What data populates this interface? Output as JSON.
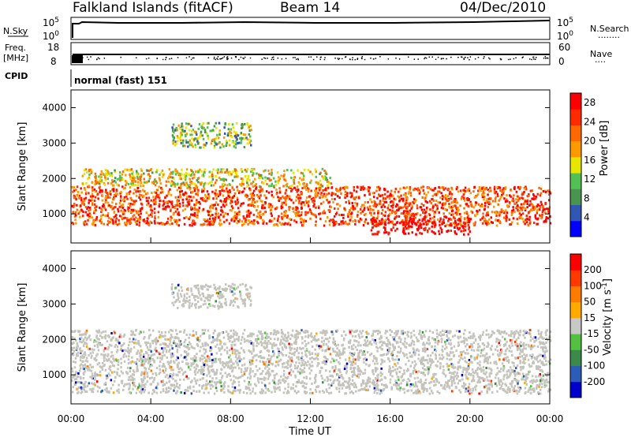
{
  "header": {
    "station": "Falkland Islands (fitACF)",
    "beam": "Beam 14",
    "date": "04/Dec/2010"
  },
  "side_labels": {
    "nsky": "N.Sky",
    "freq": "Freq.",
    "freq_unit": "[MHz]",
    "cpid": "CPID",
    "nsearch": "N.Search",
    "nave": "Nave",
    "nsearch_dots": "········",
    "nave_dots": "····"
  },
  "mini_ticks": {
    "nsky_left": [
      "10^5",
      "10^0"
    ],
    "nsky_right": [
      "10^5",
      "10^0"
    ],
    "freq_left": [
      "18",
      "8"
    ],
    "nave_right": [
      "60",
      "0"
    ]
  },
  "cpid_text": "normal (fast) 151",
  "time_axis": {
    "label": "Time UT",
    "ticks": [
      "00:00",
      "04:00",
      "08:00",
      "12:00",
      "16:00",
      "20:00",
      "00:00"
    ]
  },
  "colors": {
    "power": [
      "#0000ff",
      "#2f57b3",
      "#4a9450",
      "#52c052",
      "#e6e600",
      "#ff9900",
      "#ff6a00",
      "#ff2a00",
      "#ff0000"
    ],
    "velocity": [
      "#0000cc",
      "#2c5cb8",
      "#3c8a4a",
      "#52c040",
      "#c8c8c8",
      "#ffaa00",
      "#ff7a00",
      "#ff3a00",
      "#ff0000"
    ],
    "ground_scatter": "#c4c4bc"
  },
  "chart_data": [
    {
      "type": "heatmap",
      "title": "Power",
      "ylabel": "Slant Range [km]",
      "xlabel": "",
      "x_range_hours": [
        0,
        24
      ],
      "ylim": [
        180,
        4500
      ],
      "yticks": [
        1000,
        2000,
        3000,
        4000
      ],
      "colorbar": {
        "label": "Power [dB]",
        "ticks": [
          4,
          8,
          12,
          16,
          20,
          24,
          28
        ],
        "range": [
          0,
          30
        ]
      },
      "scatter_regions": [
        {
          "name": "ground-band",
          "t_start": 0,
          "t_end": 24,
          "range_km": [
            700,
            1800
          ],
          "value": 24
        },
        {
          "name": "upper-band",
          "t_start": 0.5,
          "t_end": 13,
          "range_km": [
            1800,
            2300
          ],
          "value": 16
        },
        {
          "name": "night-core",
          "t_start": 15,
          "t_end": 20,
          "range_km": [
            450,
            900
          ],
          "value": 30
        },
        {
          "name": "far-patch",
          "t_start": 5,
          "t_end": 9,
          "range_km": [
            2900,
            3600
          ],
          "value": 12
        }
      ]
    },
    {
      "type": "heatmap",
      "title": "Velocity",
      "ylabel": "Slant Range [km]",
      "xlabel": "Time UT",
      "x_range_hours": [
        0,
        24
      ],
      "ylim": [
        180,
        4500
      ],
      "yticks": [
        1000,
        2000,
        3000,
        4000
      ],
      "colorbar": {
        "label": "Velocity [m s^-1]",
        "ticks": [
          200,
          100,
          50,
          15,
          -15,
          -50,
          -100,
          -200
        ],
        "range": [
          -250,
          250
        ]
      },
      "scatter_regions": [
        {
          "name": "ground-band",
          "t_start": 0,
          "t_end": 24,
          "range_km": [
            500,
            2300
          ],
          "value": 0
        },
        {
          "name": "far-patch",
          "t_start": 5,
          "t_end": 9,
          "range_km": [
            2900,
            3600
          ],
          "value": 0
        }
      ]
    }
  ]
}
